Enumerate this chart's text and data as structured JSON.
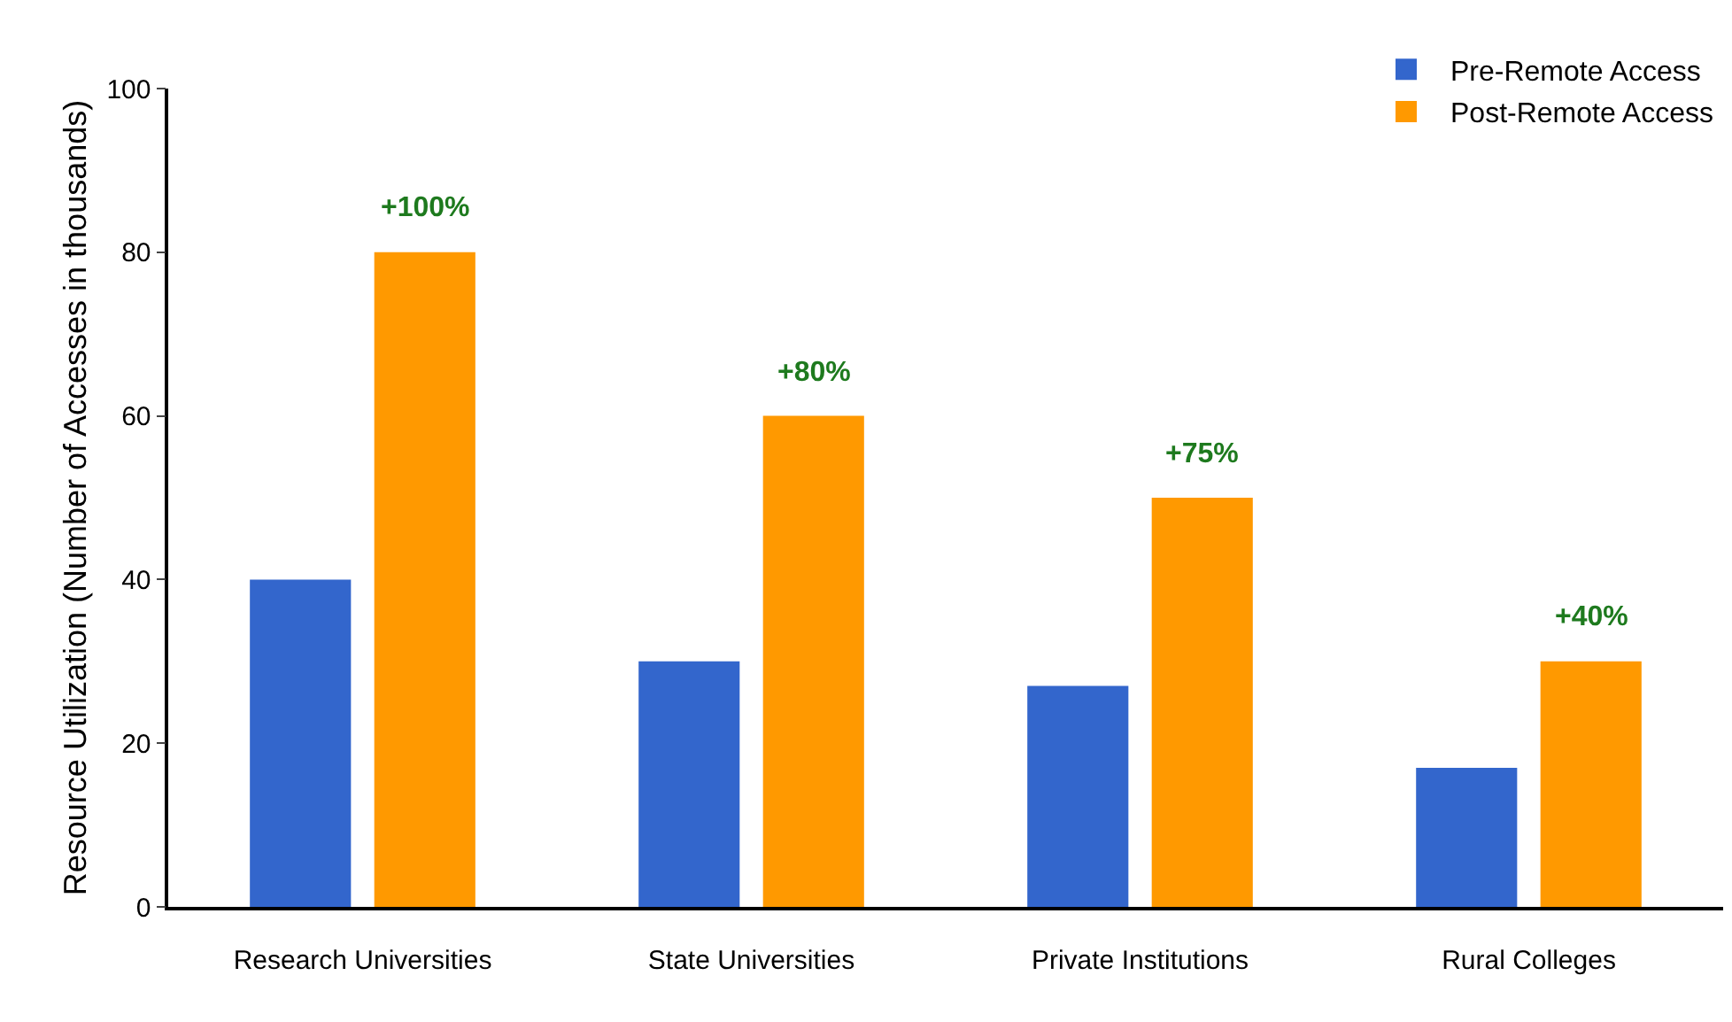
{
  "chart_data": {
    "type": "bar",
    "ylabel": "Resource Utilization (Number of Accesses in thousands)",
    "categories": [
      "Research Universities",
      "State Universities",
      "Private Institutions",
      "Rural Colleges"
    ],
    "series": [
      {
        "name": "Pre-Remote Access",
        "color": "#3366cc",
        "values": [
          40,
          30,
          27,
          17
        ]
      },
      {
        "name": "Post-Remote Access",
        "color": "#ff9900",
        "values": [
          80,
          60,
          50,
          30
        ]
      }
    ],
    "ylim": [
      0,
      100
    ],
    "yticks": [
      0,
      20,
      40,
      60,
      80,
      100
    ],
    "grid": false,
    "legend": "top right",
    "annotations": [
      "+100%",
      "+80%",
      "+75%",
      "+40%"
    ]
  }
}
